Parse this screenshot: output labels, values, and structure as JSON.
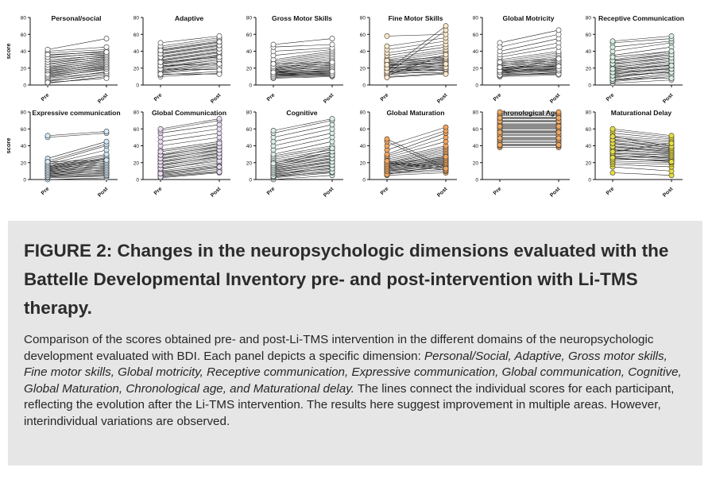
{
  "figure": {
    "y_axis_label": "score",
    "tick_labels": [
      "0",
      "20",
      "40",
      "60",
      "80"
    ],
    "colors": {
      "default": "#ffffff",
      "Fine Motor Skills": "#fde9c9",
      "Receptive Communication": "#d8f0e2",
      "Expressive communication": "#d4e9f8",
      "Global Communication": "#ecdcf4",
      "Cognitive": "#d9f0e8",
      "Global Maturation": "#f5a55b",
      "Chronological Age": "#f0a860",
      "Maturational Delay": "#e8dd3a"
    }
  },
  "chart_data": [
    {
      "type": "line",
      "title": "Personal/social",
      "categories": [
        "Pre",
        "Post"
      ],
      "ylim": [
        0,
        80
      ],
      "ylabel": "score",
      "pre": [
        2,
        5,
        8,
        10,
        12,
        14,
        15,
        16,
        18,
        20,
        22,
        25,
        28,
        32,
        35,
        38,
        40,
        42,
        4,
        6,
        9,
        11,
        13,
        17,
        19,
        21,
        24,
        27,
        30,
        33,
        36,
        3
      ],
      "post": [
        10,
        12,
        15,
        18,
        20,
        22,
        24,
        26,
        28,
        30,
        32,
        34,
        36,
        38,
        40,
        42,
        45,
        55,
        14,
        16,
        19,
        21,
        23,
        25,
        27,
        29,
        31,
        33,
        35,
        37,
        39,
        8
      ]
    },
    {
      "type": "line",
      "title": "Adaptive",
      "categories": [
        "Pre",
        "Post"
      ],
      "ylim": [
        0,
        80
      ],
      "pre": [
        10,
        12,
        14,
        16,
        18,
        20,
        22,
        24,
        26,
        28,
        30,
        32,
        34,
        36,
        38,
        40,
        42,
        44,
        46,
        50,
        15,
        17,
        21,
        25,
        29,
        33,
        37,
        41,
        13,
        19,
        23,
        27
      ],
      "post": [
        14,
        16,
        20,
        24,
        28,
        30,
        32,
        34,
        36,
        38,
        40,
        42,
        44,
        46,
        48,
        50,
        52,
        54,
        56,
        58,
        22,
        26,
        30,
        35,
        39,
        43,
        47,
        51,
        13,
        18,
        25,
        33
      ]
    },
    {
      "type": "line",
      "title": "Gross Motor Skills",
      "categories": [
        "Pre",
        "Post"
      ],
      "ylim": [
        0,
        80
      ],
      "pre": [
        8,
        10,
        11,
        12,
        13,
        14,
        15,
        16,
        17,
        18,
        19,
        20,
        22,
        24,
        26,
        28,
        30,
        35,
        40,
        45,
        48,
        12,
        14,
        16,
        18,
        20,
        22,
        25,
        9,
        11,
        13,
        15
      ],
      "post": [
        10,
        12,
        14,
        15,
        16,
        18,
        20,
        22,
        24,
        26,
        28,
        30,
        32,
        34,
        36,
        38,
        40,
        42,
        44,
        48,
        55,
        13,
        17,
        19,
        21,
        23,
        25,
        27,
        11,
        12,
        14,
        16
      ]
    },
    {
      "type": "line",
      "title": "Fine Motor Skills",
      "categories": [
        "Pre",
        "Post"
      ],
      "ylim": [
        0,
        80
      ],
      "pre": [
        10,
        12,
        14,
        15,
        16,
        18,
        20,
        22,
        24,
        26,
        28,
        30,
        32,
        35,
        38,
        42,
        46,
        58,
        13,
        17,
        19,
        21,
        23,
        25,
        27,
        29,
        11,
        14,
        16,
        20,
        24,
        9
      ],
      "post": [
        14,
        18,
        20,
        22,
        24,
        26,
        28,
        30,
        32,
        35,
        38,
        40,
        42,
        45,
        48,
        52,
        56,
        60,
        65,
        70,
        17,
        23,
        27,
        29,
        31,
        33,
        36,
        15,
        19,
        21,
        25,
        13
      ]
    },
    {
      "type": "line",
      "title": "Global Motricity",
      "categories": [
        "Pre",
        "Post"
      ],
      "ylim": [
        0,
        80
      ],
      "pre": [
        10,
        12,
        13,
        14,
        15,
        16,
        17,
        18,
        19,
        20,
        22,
        24,
        26,
        28,
        30,
        33,
        36,
        40,
        45,
        50,
        11,
        14,
        16,
        18,
        20,
        23,
        25,
        27,
        12,
        15,
        17,
        21
      ],
      "post": [
        12,
        14,
        16,
        18,
        20,
        22,
        24,
        26,
        28,
        30,
        32,
        34,
        36,
        38,
        40,
        45,
        50,
        55,
        60,
        65,
        15,
        19,
        21,
        23,
        25,
        27,
        29,
        31,
        13,
        17,
        19,
        22
      ]
    },
    {
      "type": "line",
      "title": "Receptive Communication",
      "categories": [
        "Pre",
        "Post"
      ],
      "ylim": [
        0,
        80
      ],
      "pre": [
        2,
        4,
        6,
        8,
        10,
        12,
        14,
        16,
        18,
        20,
        22,
        24,
        26,
        28,
        30,
        35,
        40,
        45,
        50,
        52,
        5,
        9,
        13,
        17,
        21,
        25,
        29,
        33,
        7,
        11,
        15,
        19
      ],
      "post": [
        6,
        10,
        14,
        18,
        20,
        22,
        24,
        26,
        28,
        30,
        32,
        34,
        36,
        38,
        40,
        45,
        50,
        52,
        55,
        58,
        12,
        16,
        20,
        24,
        28,
        32,
        36,
        40,
        8,
        15,
        19,
        23
      ]
    },
    {
      "type": "line",
      "title": "Expressive communication",
      "categories": [
        "Pre",
        "Post"
      ],
      "ylim": [
        0,
        80
      ],
      "pre": [
        0,
        2,
        3,
        4,
        5,
        6,
        7,
        8,
        9,
        10,
        11,
        12,
        13,
        14,
        15,
        16,
        18,
        20,
        22,
        25,
        50,
        52,
        3,
        5,
        7,
        9,
        11,
        13,
        15,
        17,
        19,
        21
      ],
      "post": [
        2,
        4,
        6,
        8,
        10,
        12,
        14,
        16,
        18,
        20,
        22,
        24,
        25,
        26,
        28,
        30,
        35,
        40,
        42,
        45,
        55,
        57,
        5,
        7,
        9,
        11,
        13,
        15,
        17,
        19,
        21,
        23
      ]
    },
    {
      "type": "line",
      "title": "Global Communication",
      "categories": [
        "Pre",
        "Post"
      ],
      "ylim": [
        0,
        80
      ],
      "pre": [
        2,
        4,
        6,
        8,
        10,
        12,
        14,
        16,
        18,
        20,
        22,
        24,
        26,
        28,
        30,
        35,
        40,
        45,
        50,
        55,
        58,
        60,
        5,
        9,
        13,
        17,
        21,
        25,
        29,
        33,
        3,
        7
      ],
      "post": [
        8,
        10,
        14,
        18,
        20,
        24,
        26,
        28,
        30,
        32,
        34,
        36,
        38,
        40,
        42,
        45,
        50,
        55,
        60,
        65,
        70,
        72,
        12,
        16,
        22,
        27,
        31,
        35,
        39,
        43,
        9,
        15
      ]
    },
    {
      "type": "line",
      "title": "Cognitive",
      "categories": [
        "Pre",
        "Post"
      ],
      "ylim": [
        0,
        80
      ],
      "pre": [
        0,
        2,
        3,
        4,
        5,
        6,
        8,
        10,
        12,
        14,
        16,
        18,
        20,
        22,
        24,
        26,
        28,
        30,
        35,
        40,
        45,
        50,
        55,
        58,
        4,
        7,
        9,
        11,
        13,
        15,
        17,
        19
      ],
      "post": [
        5,
        8,
        10,
        12,
        14,
        16,
        18,
        20,
        22,
        24,
        26,
        28,
        30,
        32,
        35,
        38,
        40,
        45,
        50,
        55,
        60,
        65,
        70,
        72,
        9,
        13,
        17,
        21,
        25,
        29,
        33,
        37
      ]
    },
    {
      "type": "line",
      "title": "Global Maturation",
      "categories": [
        "Pre",
        "Post"
      ],
      "ylim": [
        0,
        80
      ],
      "pre": [
        5,
        7,
        8,
        9,
        10,
        11,
        12,
        13,
        14,
        15,
        16,
        17,
        18,
        19,
        20,
        22,
        24,
        26,
        28,
        30,
        35,
        40,
        45,
        48,
        6,
        10,
        12,
        14,
        16,
        18,
        20,
        22
      ],
      "post": [
        8,
        10,
        12,
        14,
        16,
        18,
        20,
        22,
        24,
        26,
        28,
        30,
        32,
        34,
        36,
        38,
        40,
        45,
        50,
        55,
        58,
        62,
        12,
        15,
        17,
        19,
        21,
        23,
        25,
        27,
        11,
        13
      ]
    },
    {
      "type": "line",
      "title": "Chronological Age",
      "categories": [
        "Pre",
        "Post"
      ],
      "ylim": [
        0,
        80
      ],
      "pre": [
        38,
        40,
        42,
        45,
        48,
        50,
        52,
        55,
        58,
        60,
        62,
        64,
        66,
        68,
        70,
        72,
        74,
        76,
        78,
        80,
        44,
        47,
        53,
        57,
        61,
        65,
        69,
        73,
        41,
        49,
        56,
        63
      ],
      "post": [
        38,
        40,
        42,
        45,
        48,
        50,
        52,
        55,
        58,
        60,
        62,
        64,
        66,
        68,
        70,
        72,
        74,
        76,
        78,
        80,
        44,
        47,
        53,
        57,
        61,
        65,
        69,
        73,
        41,
        49,
        56,
        63
      ]
    },
    {
      "type": "line",
      "title": "Maturational Delay",
      "categories": [
        "Pre",
        "Post"
      ],
      "ylim": [
        0,
        80
      ],
      "pre": [
        8,
        15,
        18,
        20,
        22,
        25,
        28,
        30,
        32,
        34,
        36,
        38,
        40,
        42,
        44,
        46,
        48,
        50,
        52,
        55,
        58,
        60,
        24,
        27,
        31,
        35,
        39,
        43,
        47,
        51,
        26,
        33
      ],
      "post": [
        5,
        10,
        15,
        18,
        20,
        22,
        24,
        25,
        26,
        28,
        30,
        32,
        34,
        36,
        38,
        40,
        42,
        44,
        46,
        48,
        50,
        52,
        23,
        27,
        29,
        31,
        33,
        35,
        37,
        39,
        21,
        43
      ]
    }
  ],
  "caption": {
    "title": "FIGURE 2: Changes in the neuropsychologic dimensions evaluated with the Battelle Developmental Inventory pre- and post-intervention with Li-TMS therapy.",
    "body_intro": "Comparison of the scores obtained pre- and post-Li-TMS intervention in the different domains of the neuropsychologic development evaluated with BDI. Each panel depicts a specific dimension: ",
    "body_domains": "Personal/Social, Adaptive, Gross motor skills, Fine motor skills, Global motricity, Receptive communication, Expressive communication, Global communication, Cognitive, Global Maturation, Chronological age, and Maturational delay.",
    "body_rest": " The lines connect the individual scores for each participant, reflecting the evolution after the Li-TMS intervention. The results here suggest improvement in multiple areas. However, interindividual variations are observed."
  }
}
